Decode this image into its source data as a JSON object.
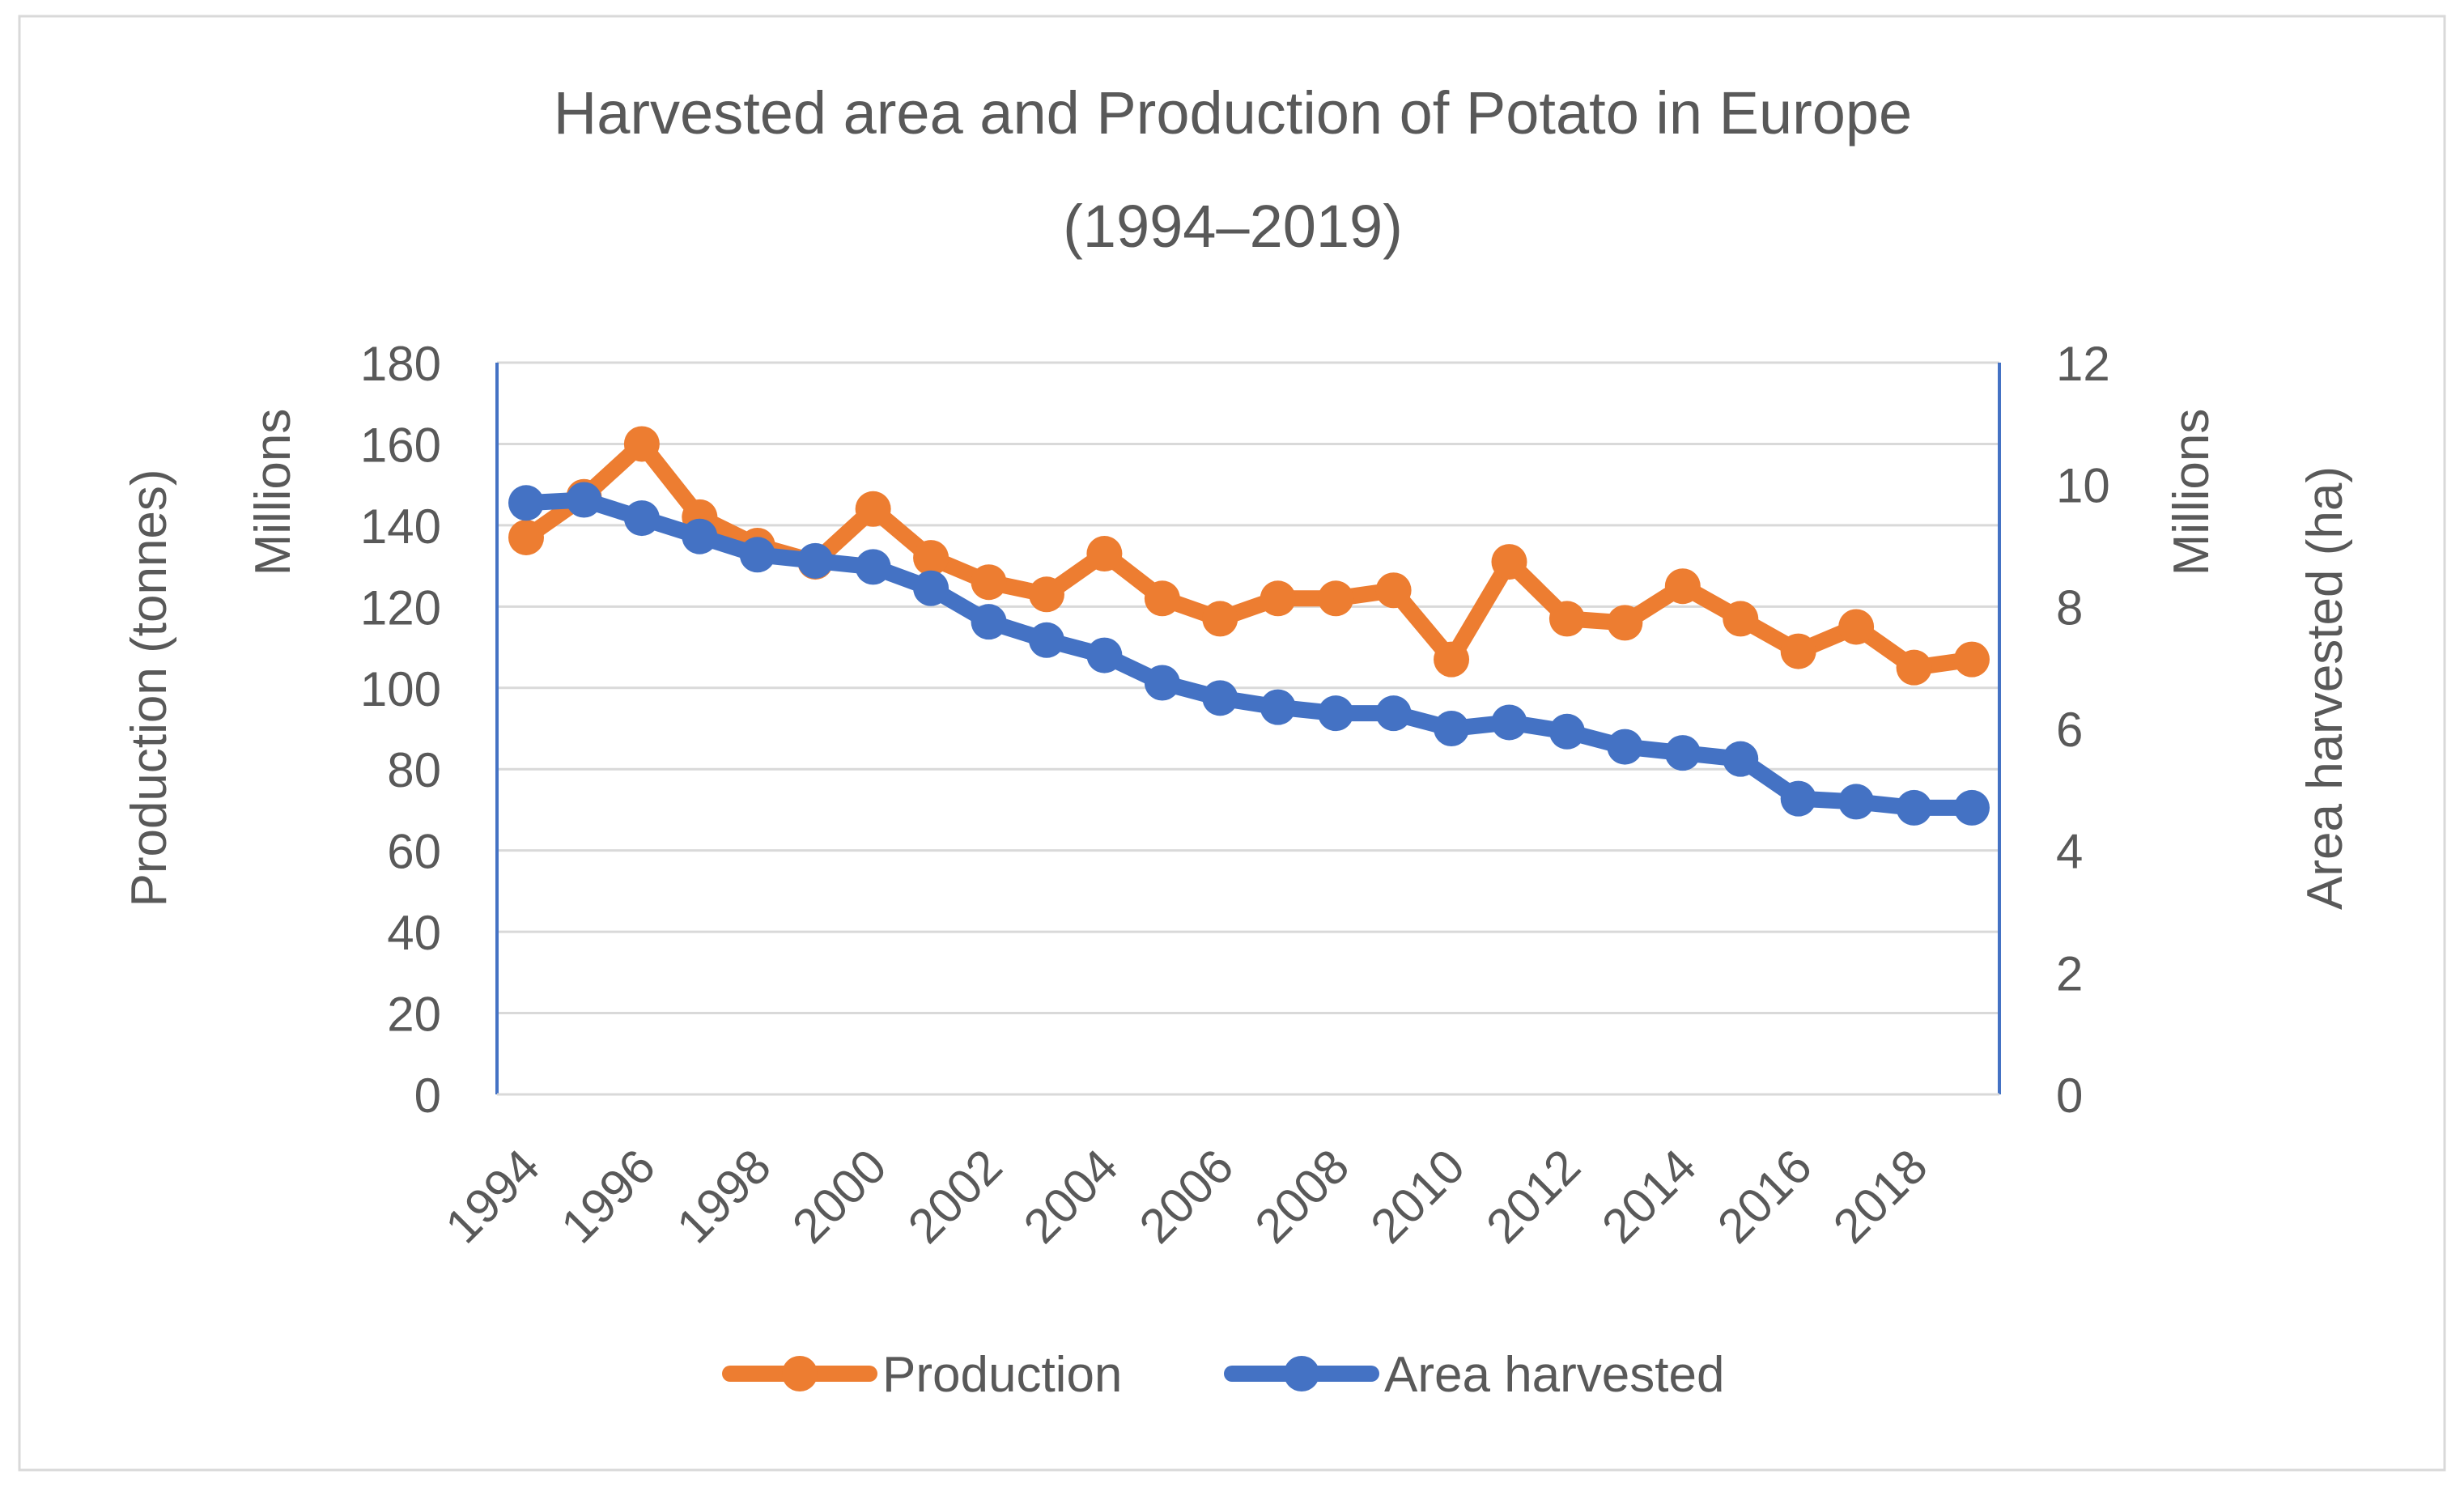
{
  "chart_data": {
    "type": "line",
    "title": "Harvested area and Production of Potato in Europe",
    "subtitle": "(1994–2019)",
    "x": [
      1994,
      1995,
      1996,
      1997,
      1998,
      1999,
      2000,
      2001,
      2002,
      2003,
      2004,
      2005,
      2006,
      2007,
      2008,
      2009,
      2010,
      2011,
      2012,
      2013,
      2014,
      2015,
      2016,
      2017,
      2018,
      2019
    ],
    "x_tick_labels": [
      "1994",
      "1996",
      "1998",
      "2000",
      "2002",
      "2004",
      "2006",
      "2008",
      "2010",
      "2012",
      "2014",
      "2016",
      "2018"
    ],
    "y_left": {
      "label": "Production (tonnes)",
      "unit_label": "Millions",
      "ylim": [
        0,
        180
      ],
      "ticks": [
        "0",
        "20",
        "40",
        "60",
        "80",
        "100",
        "120",
        "140",
        "160",
        "180"
      ]
    },
    "y_right": {
      "label": "Area harvested (ha)",
      "unit_label": "Millions",
      "ylim": [
        0,
        12
      ],
      "ticks": [
        "0",
        "2",
        "4",
        "6",
        "8",
        "10",
        "12"
      ]
    },
    "series": [
      {
        "name": "Production",
        "axis": "left",
        "color": "#ED7D31",
        "values": [
          137,
          147,
          160,
          142,
          135,
          131,
          144,
          132,
          126,
          123,
          133,
          122,
          117,
          122,
          122,
          124,
          107,
          131,
          117,
          116,
          125,
          117,
          109,
          115,
          105,
          107
        ]
      },
      {
        "name": "Area harvested",
        "axis": "right",
        "color": "#4472C4",
        "values": [
          9.7,
          9.75,
          9.45,
          9.15,
          8.85,
          8.75,
          8.65,
          8.3,
          7.75,
          7.45,
          7.2,
          6.75,
          6.5,
          6.35,
          6.25,
          6.25,
          6.0,
          6.1,
          5.95,
          5.7,
          5.6,
          5.5,
          4.85,
          4.8,
          4.7,
          4.7
        ]
      }
    ],
    "legend_position": "bottom",
    "grid": true
  }
}
